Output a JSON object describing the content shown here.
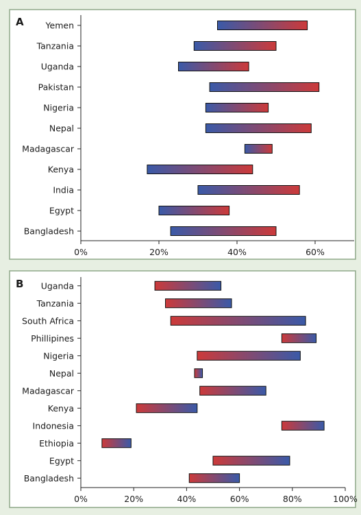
{
  "colors": {
    "background": "#e7efe2",
    "frame": "#8fa889",
    "blue": "#3a5aa8",
    "red": "#cc3a3a"
  },
  "chart_data": [
    {
      "type": "bar",
      "orientation": "horizontal-range",
      "panel_label": "A",
      "gradient": "blue-to-red",
      "categories": [
        "Yemen",
        "Tanzania",
        "Uganda",
        "Pakistan",
        "Nigeria",
        "Nepal",
        "Madagascar",
        "Kenya",
        "India",
        "Egypt",
        "Bangladesh"
      ],
      "ranges": [
        [
          35,
          58
        ],
        [
          29,
          50
        ],
        [
          25,
          43
        ],
        [
          33,
          61
        ],
        [
          32,
          48
        ],
        [
          32,
          59
        ],
        [
          42,
          49
        ],
        [
          17,
          44
        ],
        [
          30,
          56
        ],
        [
          20,
          38
        ],
        [
          23,
          50
        ]
      ],
      "xlim": [
        0,
        70
      ],
      "xticks": [
        0,
        20,
        40,
        60
      ],
      "xtick_labels": [
        "0%",
        "20%",
        "40%",
        "60%"
      ],
      "xlabel": "",
      "ylabel": "",
      "title": ""
    },
    {
      "type": "bar",
      "orientation": "horizontal-range",
      "panel_label": "B",
      "gradient": "red-to-blue",
      "categories": [
        "Uganda",
        "Tanzania",
        "South Africa",
        "Phillipines",
        "Nigeria",
        "Nepal",
        "Madagascar",
        "Kenya",
        "Indonesia",
        "Ethiopia",
        "Egypt",
        "Bangladesh"
      ],
      "ranges": [
        [
          28,
          53
        ],
        [
          32,
          57
        ],
        [
          34,
          85
        ],
        [
          76,
          89
        ],
        [
          44,
          83
        ],
        [
          43,
          46
        ],
        [
          45,
          70
        ],
        [
          21,
          44
        ],
        [
          76,
          92
        ],
        [
          8,
          19
        ],
        [
          50,
          79
        ],
        [
          41,
          60
        ]
      ],
      "xlim": [
        0,
        100
      ],
      "xticks": [
        0,
        20,
        40,
        60,
        80,
        100
      ],
      "xtick_labels": [
        "0%",
        "20%",
        "40%",
        "60%",
        "80%",
        "100%"
      ],
      "xlabel": "",
      "ylabel": "",
      "title": ""
    }
  ]
}
